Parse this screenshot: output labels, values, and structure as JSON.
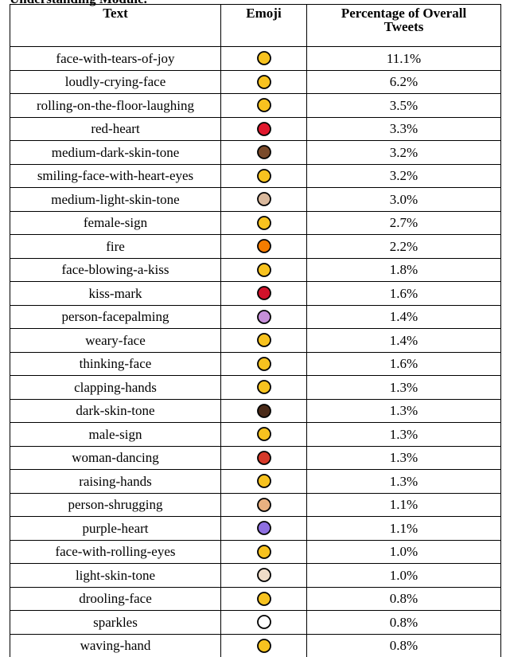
{
  "caption": "Understanding Module.",
  "table": {
    "columns": [
      "Text",
      "Emoji",
      "Percentage of Overall Tweets"
    ],
    "rows": [
      {
        "text": "face-with-tears-of-joy",
        "percentage": "11.1%"
      },
      {
        "text": "loudly-crying-face",
        "percentage": "6.2%"
      },
      {
        "text": "rolling-on-the-floor-laughing",
        "percentage": "3.5%"
      },
      {
        "text": "red-heart",
        "percentage": "3.3%"
      },
      {
        "text": "medium-dark-skin-tone",
        "percentage": "3.2%"
      },
      {
        "text": "smiling-face-with-heart-eyes",
        "percentage": "3.2%"
      },
      {
        "text": "medium-light-skin-tone",
        "percentage": "3.0%"
      },
      {
        "text": "female-sign",
        "percentage": "2.7%"
      },
      {
        "text": "fire",
        "percentage": "2.2%"
      },
      {
        "text": "face-blowing-a-kiss",
        "percentage": "1.8%"
      },
      {
        "text": "kiss-mark",
        "percentage": "1.6%"
      },
      {
        "text": "person-facepalming",
        "percentage": "1.4%"
      },
      {
        "text": "weary-face",
        "percentage": "1.4%"
      },
      {
        "text": "thinking-face",
        "percentage": "1.6%"
      },
      {
        "text": "clapping-hands",
        "percentage": "1.3%"
      },
      {
        "text": "dark-skin-tone",
        "percentage": "1.3%"
      },
      {
        "text": "male-sign",
        "percentage": "1.3%"
      },
      {
        "text": "woman-dancing",
        "percentage": "1.3%"
      },
      {
        "text": "raising-hands",
        "percentage": "1.3%"
      },
      {
        "text": "person-shrugging",
        "percentage": "1.1%"
      },
      {
        "text": "purple-heart",
        "percentage": "1.1%"
      },
      {
        "text": "face-with-rolling-eyes",
        "percentage": "1.0%"
      },
      {
        "text": "light-skin-tone",
        "percentage": "1.0%"
      },
      {
        "text": "drooling-face",
        "percentage": "0.8%"
      },
      {
        "text": "sparkles",
        "percentage": "0.8%"
      },
      {
        "text": "waving-hand",
        "percentage": "0.8%"
      }
    ]
  }
}
